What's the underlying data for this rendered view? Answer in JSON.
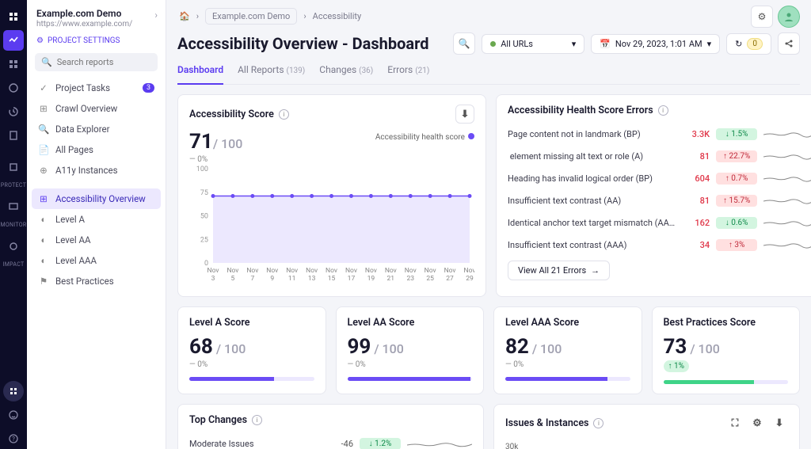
{
  "rail": {
    "labels": [
      "PROTECT",
      "MONITOR",
      "IMPACT"
    ]
  },
  "sidebar": {
    "title": "Example.com Demo",
    "url": "https://www.example.com/",
    "settings": "PROJECT SETTINGS",
    "search_placeholder": "Search reports",
    "nav": [
      {
        "label": "Project Tasks",
        "badge": "3"
      },
      {
        "label": "Crawl Overview"
      },
      {
        "label": "Data Explorer"
      },
      {
        "label": "All Pages"
      },
      {
        "label": "A11y Instances"
      }
    ],
    "nav2": [
      {
        "label": "Accessibility Overview"
      },
      {
        "label": "Level A"
      },
      {
        "label": "Level AA"
      },
      {
        "label": "Level AAA"
      },
      {
        "label": "Best Practices"
      }
    ]
  },
  "breadcrumb": {
    "a": "Example.com Demo",
    "b": "Accessibility"
  },
  "title": "Accessibility Overview - Dashboard",
  "filter": {
    "urls": "All URLs",
    "date": "Nov 29, 2023, 1:01 AM",
    "count": "0"
  },
  "tabs": [
    {
      "label": "Dashboard"
    },
    {
      "label": "All Reports",
      "count": "(139)"
    },
    {
      "label": "Changes",
      "count": "(36)"
    },
    {
      "label": "Errors",
      "count": "(21)"
    }
  ],
  "mainChart": {
    "title": "Accessibility Score",
    "score": "71",
    "max": "/ 100",
    "delta": "— 0%",
    "legend": "Accessibility health score",
    "yticks": [
      "100",
      "75",
      "50",
      "25",
      "0"
    ],
    "xticks": [
      "Nov 3",
      "Nov 5",
      "Nov 7",
      "Nov 9",
      "Nov 11",
      "Nov 13",
      "Nov 15",
      "Nov 17",
      "Nov 19",
      "Nov 21",
      "Nov 23",
      "Nov 25",
      "Nov 27",
      "Nov 29"
    ],
    "line_color": "#6b4cf5",
    "fill_color": "#ece8fe",
    "value": 71,
    "ymax": 100
  },
  "errors": {
    "title": "Accessibility Health Score Errors",
    "rows": [
      {
        "name": "Page content not in landmark (BP)",
        "val": "3.3K",
        "chg": "↓ 1.5%",
        "dir": "down"
      },
      {
        "name": "<img> element missing alt text or role (A)",
        "val": "81",
        "chg": "↑ 22.7%",
        "dir": "up"
      },
      {
        "name": "Heading has invalid logical order (BP)",
        "val": "604",
        "chg": "↑ 0.7%",
        "dir": "up"
      },
      {
        "name": "Insufficient text contrast (AA)",
        "val": "81",
        "chg": "↑ 15.7%",
        "dir": "up"
      },
      {
        "name": "Identical anchor text target mismatch (AA…",
        "val": "162",
        "chg": "↓ 0.6%",
        "dir": "down"
      },
      {
        "name": "Insufficient text contrast (AAA)",
        "val": "34",
        "chg": "↑ 3%",
        "dir": "up"
      }
    ],
    "viewall": "View All 21 Errors"
  },
  "scores": [
    {
      "title": "Level A Score",
      "val": "68",
      "max": "/ 100",
      "delta": "— 0%",
      "pct": 68,
      "cls": ""
    },
    {
      "title": "Level AA Score",
      "val": "99",
      "max": "/ 100",
      "delta": "— 0%",
      "pct": 99,
      "cls": ""
    },
    {
      "title": "Level AAA Score",
      "val": "82",
      "max": "/ 100",
      "delta": "— 0%",
      "pct": 82,
      "cls": ""
    },
    {
      "title": "Best Practices Score",
      "val": "73",
      "max": "/ 100",
      "delta": "↑ 1%",
      "pct": 73,
      "cls": "bp",
      "pos": true
    }
  ],
  "changes": {
    "title": "Top Changes",
    "row": {
      "name": "Moderate Issues",
      "val": "-46",
      "chg": "↓ 1.2%"
    }
  },
  "issues": {
    "title": "Issues & Instances",
    "yval": "30k"
  }
}
